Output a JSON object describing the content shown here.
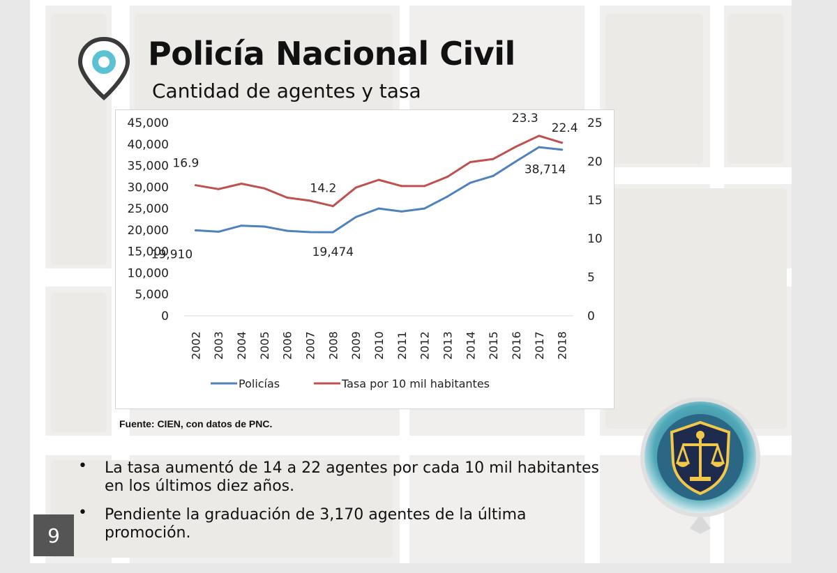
{
  "slide": {
    "title": "Policía Nacional Civil",
    "subtitle": "Cantidad de agentes y tasa",
    "source": "Fuente: CIEN, con datos de PNC.",
    "bullets": [
      "La tasa aumentó de 14 a 22 agentes por cada 10 mil habitantes en los últimos diez años.",
      "Pendiente la graduación de 3,170 agentes de la última promoción."
    ],
    "page_number": "9"
  },
  "icons": {
    "pin": "location-pin-icon",
    "badge": "justice-scales-badge-icon"
  },
  "colors": {
    "policias": "#4f81bd",
    "tasa": "#c0504d"
  },
  "chart_data": {
    "type": "line",
    "categories": [
      "2002",
      "2003",
      "2004",
      "2005",
      "2006",
      "2007",
      "2008",
      "2009",
      "2010",
      "2011",
      "2012",
      "2013",
      "2014",
      "2015",
      "2016",
      "2017",
      "2018"
    ],
    "y_left": {
      "ylim": [
        0,
        45000
      ],
      "ticks": [
        "0",
        "5,000",
        "10,000",
        "15,000",
        "20,000",
        "25,000",
        "30,000",
        "35,000",
        "40,000",
        "45,000"
      ]
    },
    "y_right": {
      "ylim": [
        0,
        25
      ],
      "ticks": [
        "0",
        "5",
        "10",
        "15",
        "20",
        "25"
      ]
    },
    "series": [
      {
        "name": "Policías",
        "axis": "left",
        "color": "#4f81bd",
        "values": [
          19910,
          19600,
          21000,
          20800,
          19800,
          19500,
          19474,
          23000,
          25000,
          24300,
          25000,
          27800,
          31000,
          32600,
          36000,
          39300,
          38714
        ]
      },
      {
        "name": "Tasa por 10 mil habitantes",
        "axis": "right",
        "color": "#c0504d",
        "values": [
          16.9,
          16.4,
          17.1,
          16.5,
          15.3,
          14.9,
          14.2,
          16.6,
          17.6,
          16.8,
          16.8,
          18.0,
          19.9,
          20.3,
          21.9,
          23.3,
          22.4
        ]
      }
    ],
    "data_labels": [
      {
        "series": 0,
        "index": 0,
        "text": "19,910"
      },
      {
        "series": 0,
        "index": 6,
        "text": "19,474"
      },
      {
        "series": 0,
        "index": 16,
        "text": "38,714"
      },
      {
        "series": 1,
        "index": 0,
        "text": "16.9"
      },
      {
        "series": 1,
        "index": 6,
        "text": "14.2"
      },
      {
        "series": 1,
        "index": 15,
        "text": "23.3"
      },
      {
        "series": 1,
        "index": 16,
        "text": "22.4"
      }
    ],
    "legend_position": "bottom",
    "grid": false
  }
}
